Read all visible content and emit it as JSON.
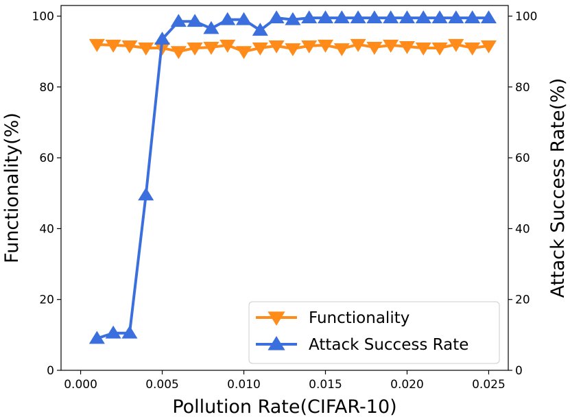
{
  "chart_data": {
    "type": "line",
    "xlabel": "Pollution Rate(CIFAR-10)",
    "ylabel_left": "Functionality(%)",
    "ylabel_right": "Attack Success Rate(%)",
    "xlim": [
      -0.0012,
      0.0262
    ],
    "ylim": [
      0,
      103
    ],
    "x_ticks": [
      0.0,
      0.005,
      0.01,
      0.015,
      0.02,
      0.025
    ],
    "x_tick_labels": [
      "0.000",
      "0.005",
      "0.010",
      "0.015",
      "0.020",
      "0.025"
    ],
    "y_ticks": [
      0,
      20,
      40,
      60,
      80,
      100
    ],
    "y_tick_labels": [
      "0",
      "20",
      "40",
      "60",
      "80",
      "100"
    ],
    "x": [
      0.001,
      0.002,
      0.003,
      0.004,
      0.005,
      0.006,
      0.007,
      0.008,
      0.009,
      0.01,
      0.011,
      0.012,
      0.013,
      0.014,
      0.015,
      0.016,
      0.017,
      0.018,
      0.019,
      0.02,
      0.021,
      0.022,
      0.023,
      0.024,
      0.025
    ],
    "series": [
      {
        "name": "Functionality",
        "color": "#ff8c1a",
        "marker": "triangle-down",
        "values": [
          92.0,
          91.8,
          91.6,
          91.0,
          91.0,
          90.0,
          91.0,
          91.2,
          91.8,
          90.0,
          91.0,
          91.6,
          90.8,
          91.6,
          91.8,
          90.8,
          92.0,
          91.2,
          91.8,
          91.4,
          91.0,
          91.0,
          92.0,
          91.0,
          91.6
        ]
      },
      {
        "name": "Attack Success Rate",
        "color": "#3b6fdd",
        "marker": "triangle-up",
        "values": [
          9.0,
          10.5,
          10.5,
          49.5,
          93.5,
          98.5,
          98.5,
          96.5,
          99.0,
          99.0,
          96.0,
          99.5,
          99.0,
          99.5,
          99.5,
          99.5,
          99.5,
          99.5,
          99.5,
          99.5,
          99.5,
          99.5,
          99.5,
          99.5,
          99.5
        ]
      }
    ],
    "legend": {
      "position": "bottom-right",
      "entries": [
        "Functionality",
        "Attack Success Rate"
      ]
    }
  }
}
